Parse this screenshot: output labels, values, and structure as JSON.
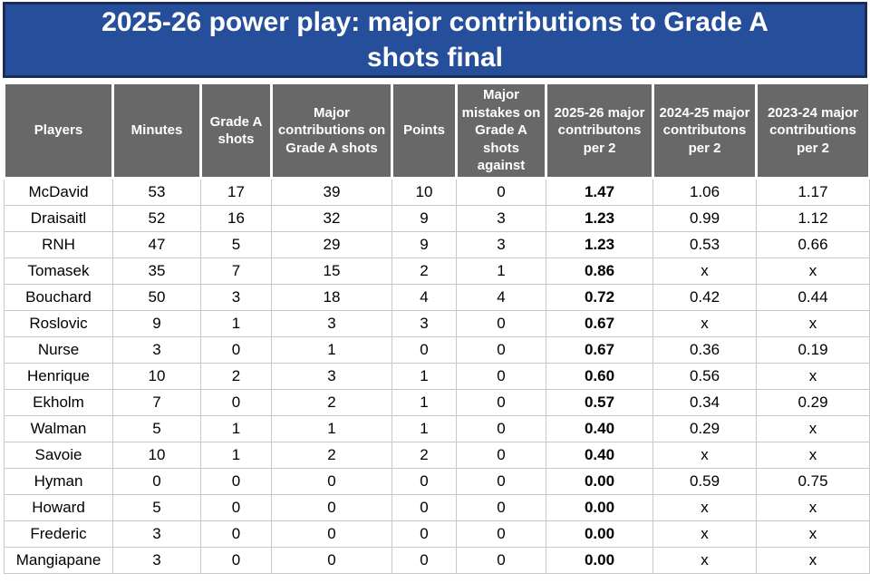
{
  "title": {
    "full": "2025-26 power play: major contributions to Grade A shots final",
    "line1": "2025-26 power play: major contributions to Grade A",
    "line2": "shots final"
  },
  "colors": {
    "banner_bg": "#254F9B",
    "banner_border": "#1C2D5B",
    "header_bg": "#686868",
    "header_text": "#FFFFFF",
    "grid_line": "#C8C8C8",
    "body_text": "#000000"
  },
  "emphasis": {
    "bold_column_index": 6
  },
  "chart_data": {
    "type": "table",
    "title": "2025-26 power play: major contributions to Grade A shots final",
    "columns": [
      "Players",
      "Minutes",
      "Grade A shots",
      "Major contributions on Grade A shots",
      "Points",
      "Major mistakes on Grade A shots against",
      "2025-26 major contributons per 2",
      "2024-25 major contributons per 2",
      "2023-24 major contributions per 2"
    ],
    "rows": [
      [
        "McDavid",
        "53",
        "17",
        "39",
        "10",
        "0",
        "1.47",
        "1.06",
        "1.17"
      ],
      [
        "Draisaitl",
        "52",
        "16",
        "32",
        "9",
        "3",
        "1.23",
        "0.99",
        "1.12"
      ],
      [
        "RNH",
        "47",
        "5",
        "29",
        "9",
        "3",
        "1.23",
        "0.53",
        "0.66"
      ],
      [
        "Tomasek",
        "35",
        "7",
        "15",
        "2",
        "1",
        "0.86",
        "x",
        "x"
      ],
      [
        "Bouchard",
        "50",
        "3",
        "18",
        "4",
        "4",
        "0.72",
        "0.42",
        "0.44"
      ],
      [
        "Roslovic",
        "9",
        "1",
        "3",
        "3",
        "0",
        "0.67",
        "x",
        "x"
      ],
      [
        "Nurse",
        "3",
        "0",
        "1",
        "0",
        "0",
        "0.67",
        "0.36",
        "0.19"
      ],
      [
        "Henrique",
        "10",
        "2",
        "3",
        "1",
        "0",
        "0.60",
        "0.56",
        "x"
      ],
      [
        "Ekholm",
        "7",
        "0",
        "2",
        "1",
        "0",
        "0.57",
        "0.34",
        "0.29"
      ],
      [
        "Walman",
        "5",
        "1",
        "1",
        "1",
        "0",
        "0.40",
        "0.29",
        "x"
      ],
      [
        "Savoie",
        "10",
        "1",
        "2",
        "2",
        "0",
        "0.40",
        "x",
        "x"
      ],
      [
        "Hyman",
        "0",
        "0",
        "0",
        "0",
        "0",
        "0.00",
        "0.59",
        "0.75"
      ],
      [
        "Howard",
        "5",
        "0",
        "0",
        "0",
        "0",
        "0.00",
        "x",
        "x"
      ],
      [
        "Frederic",
        "3",
        "0",
        "0",
        "0",
        "0",
        "0.00",
        "x",
        "x"
      ],
      [
        "Mangiapane",
        "3",
        "0",
        "0",
        "0",
        "0",
        "0.00",
        "x",
        "x"
      ]
    ]
  }
}
